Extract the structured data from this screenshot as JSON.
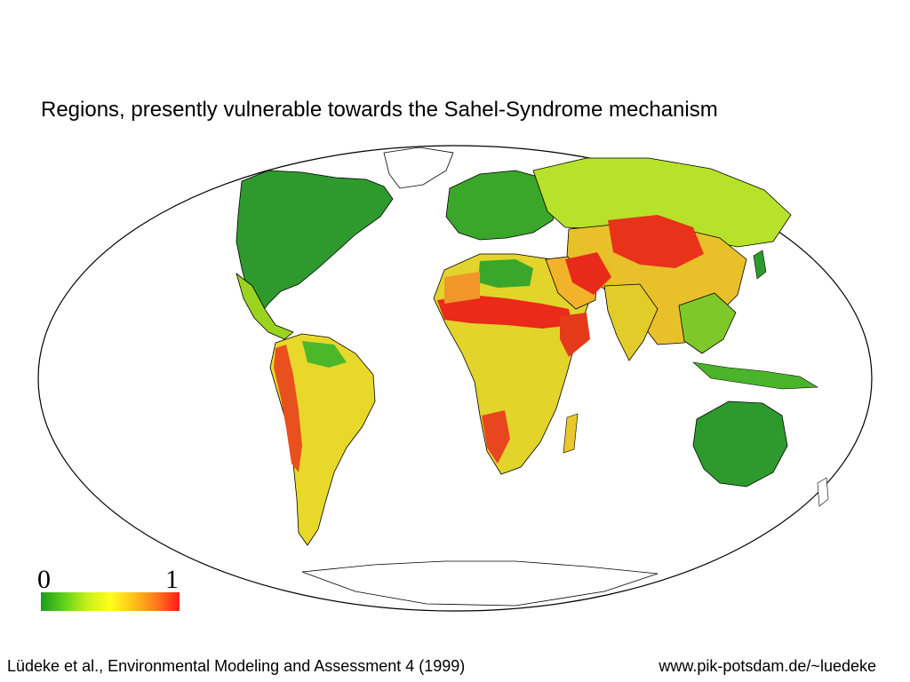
{
  "title": "Regions, presently vulnerable towards the Sahel-Syndrome mechanism",
  "legend": {
    "min_label": "0",
    "max_label": "1",
    "colors": [
      "#1e9b1e",
      "#5fd21a",
      "#c8ef1a",
      "#ffff1a",
      "#ffc21a",
      "#ff7a1a",
      "#ff1a1a"
    ]
  },
  "colors": {
    "land_low": "#2a9a2a",
    "land_mid": "#d8e02a",
    "land_high": "#e8281e",
    "ocean": "#ffffff",
    "outline": "#000000"
  },
  "citation": "Lüdeke et al., Environmental Modeling and Assessment 4 (1999)",
  "source_url": "www.pik-potsdam.de/~luedeke"
}
